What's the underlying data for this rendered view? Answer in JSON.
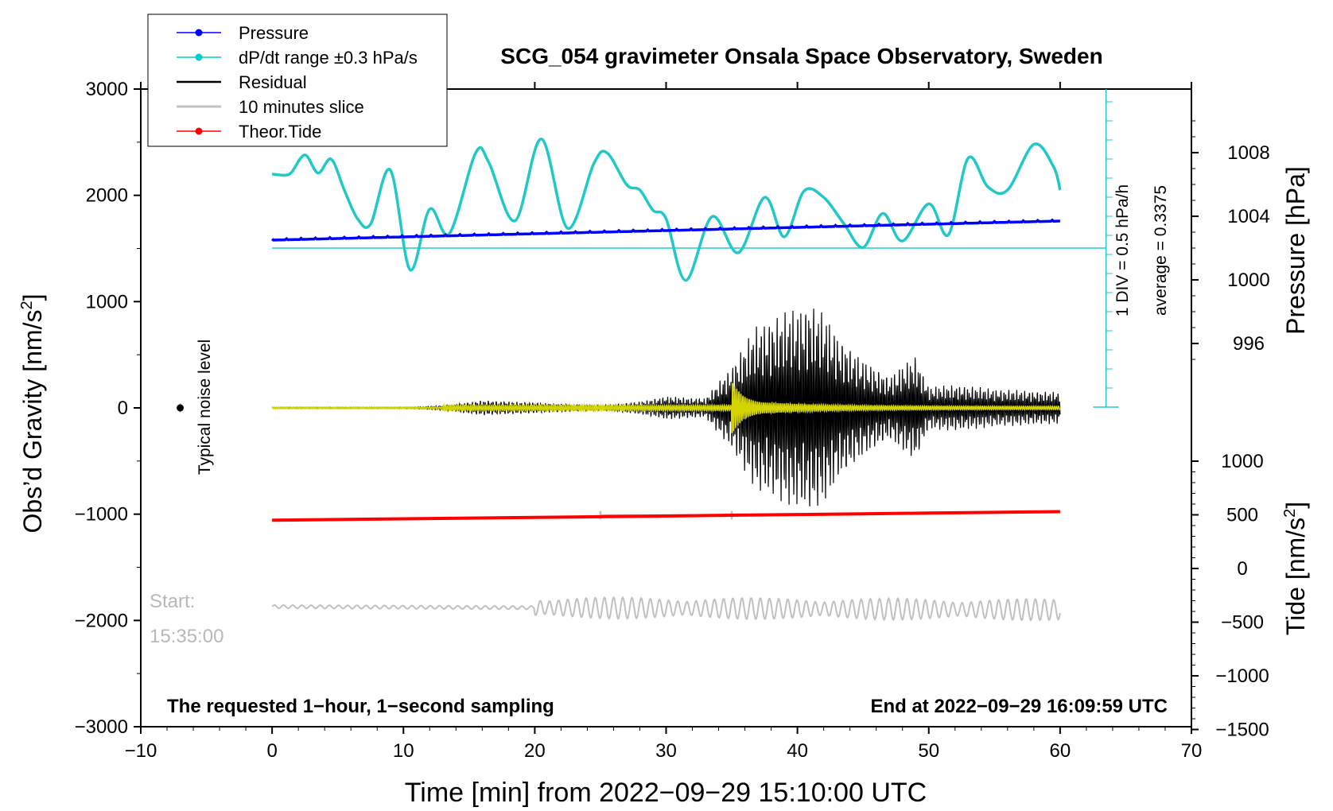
{
  "chart_data": {
    "type": "line",
    "title": "SCG_054 gravimeter Onsala Space Observatory, Sweden",
    "xlabel": "Time [min] from 2022−09−29 15:10:00 UTC",
    "ylabel_left_base": "Obs’d Gravity [nm/s",
    "ylabel_left_sup": "2",
    "ylabel_left_end": "]",
    "ylabel_right_top": "Pressure [hPa]",
    "ylabel_right_bottom_base": "Tide [nm/s",
    "ylabel_right_bottom_sup": "2",
    "ylabel_right_bottom_end": "]",
    "xlim": [
      -10,
      70
    ],
    "xticks": [
      -10,
      0,
      10,
      20,
      30,
      40,
      50,
      60,
      70
    ],
    "xtick_labels": [
      "−10",
      "0",
      "10",
      "20",
      "30",
      "40",
      "50",
      "60",
      "70"
    ],
    "ylim_left": [
      -3000,
      3000
    ],
    "yticks_left": [
      3000,
      2000,
      1000,
      0,
      -1000,
      -2000,
      -3000
    ],
    "ytick_labels_left": [
      "3000",
      "2000",
      "1000",
      "0",
      "−1000",
      "−2000",
      "−3000"
    ],
    "pressure_ticks": [
      1008,
      1004,
      1000,
      996
    ],
    "pressure_tick_labels": [
      "1008",
      "1004",
      "1000",
      "996"
    ],
    "tide_ticks": [
      1000,
      500,
      0,
      -500,
      -1000,
      -1500
    ],
    "tide_tick_labels": [
      "1000",
      "500",
      "0",
      "−500",
      "−1000",
      "−1500"
    ],
    "legend": [
      {
        "label": "Pressure",
        "color": "#0000ff",
        "marker": true
      },
      {
        "label": "dP/dt range ±0.3 hPa/s",
        "color": "#00cccc",
        "marker": true
      },
      {
        "label": "Residual",
        "color": "#000000",
        "marker": false
      },
      {
        "label": "10 minutes slice",
        "color": "#c0c0c0",
        "marker": false
      },
      {
        "label": "Theor.Tide",
        "color": "#ff0000",
        "marker": true
      }
    ],
    "legend_position": "top-left",
    "annotations": {
      "noise_level": "Typical noise level",
      "start_label": "Start:",
      "start_time": "15:35:00",
      "bottom_left": "The requested 1−hour, 1−second sampling",
      "bottom_right": "End at 2022−09−29 16:09:59 UTC",
      "scale_div": "1 DIV = 0.5 hPa/h",
      "scale_avg": "average = 0.3375"
    },
    "series": [
      {
        "name": "Pressure",
        "axis": "pressure",
        "color": "#0000ff",
        "x": [
          0,
          10,
          20,
          30,
          40,
          50,
          60
        ],
        "values": [
          1002.5,
          1002.7,
          1002.9,
          1003.1,
          1003.3,
          1003.5,
          1003.7
        ]
      },
      {
        "name": "dP/dt range ±0.3 hPa/s",
        "axis": "gravity_px",
        "color": "#20c8c8",
        "x": [
          0,
          1,
          1.5,
          2.5,
          3.5,
          4.5,
          5.5,
          6.5,
          7.5,
          9,
          10.5,
          12,
          13.5,
          15.5,
          16.5,
          18.5,
          20.5,
          22.5,
          24.5,
          25.5,
          27,
          28,
          29,
          30,
          31.5,
          33.5,
          35.5,
          37.5,
          39,
          40.5,
          42,
          43.5,
          45,
          46.5,
          48,
          50,
          51.5,
          53,
          54.5,
          56,
          58,
          59.5,
          60
        ],
        "values": [
          2200,
          2190,
          2220,
          2380,
          2210,
          2340,
          2050,
          1780,
          1730,
          2240,
          1300,
          1870,
          1640,
          2400,
          2310,
          1760,
          2530,
          1690,
          2300,
          2400,
          2100,
          2050,
          1860,
          1780,
          1200,
          1800,
          1460,
          1980,
          1610,
          2040,
          1980,
          1740,
          1510,
          1830,
          1570,
          1920,
          1630,
          2350,
          2080,
          2050,
          2480,
          2270,
          2050
        ]
      },
      {
        "name": "Residual",
        "axis": "gravity",
        "color": "#000000",
        "x": [
          0,
          10,
          13,
          16,
          20,
          25,
          28,
          30,
          33,
          35,
          36,
          37,
          38,
          39,
          40,
          41,
          42,
          43,
          45,
          47,
          49,
          50,
          52,
          55,
          58,
          60
        ],
        "values": [
          5,
          5,
          20,
          70,
          50,
          20,
          60,
          110,
          90,
          400,
          600,
          800,
          850,
          900,
          950,
          1000,
          900,
          700,
          450,
          300,
          500,
          200,
          220,
          180,
          160,
          150
        ]
      },
      {
        "name": "10 minutes slice",
        "axis": "gravity",
        "color": "#c0c0c0",
        "x": [
          0,
          10,
          20,
          30,
          40,
          50,
          60
        ],
        "values": [
          -1870,
          -1870,
          -1860,
          -1870,
          -1870,
          -1870,
          -1900
        ]
      },
      {
        "name": "Theor.Tide",
        "axis": "tide",
        "color": "#ff0000",
        "x": [
          0,
          10,
          20,
          30,
          40,
          50,
          60
        ],
        "values": [
          450,
          463,
          476,
          489,
          503,
          516,
          530
        ]
      }
    ]
  }
}
